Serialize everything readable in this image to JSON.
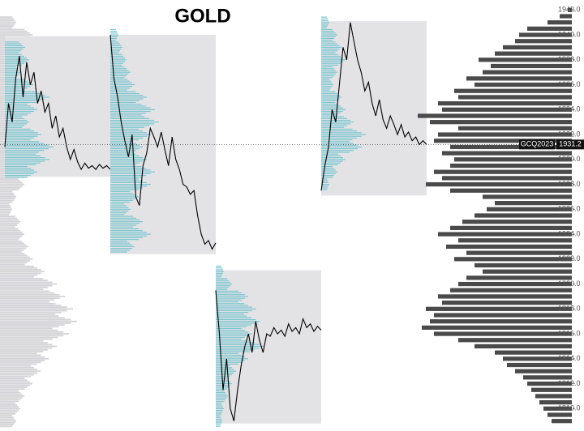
{
  "chart_data": {
    "type": "volume-profile",
    "title": "GOLD",
    "symbol": "GCQ2023",
    "last_price": 1931.2,
    "ylim": [
      1908.2,
      1942.8
    ],
    "yticks": [
      {
        "value": 1942,
        "label": "1942.0"
      },
      {
        "value": 1940,
        "label": "1940.0"
      },
      {
        "value": 1938,
        "label": "1938.0"
      },
      {
        "value": 1936,
        "label": "1936.0"
      },
      {
        "value": 1934,
        "label": "1934.0"
      },
      {
        "value": 1932,
        "label": "1932.0"
      },
      {
        "value": 1930,
        "label": "1930.0"
      },
      {
        "value": 1928,
        "label": "1928.0"
      },
      {
        "value": 1926,
        "label": "1926.0"
      },
      {
        "value": 1924,
        "label": "1924.0"
      },
      {
        "value": 1922,
        "label": "1922.0"
      },
      {
        "value": 1920,
        "label": "1920.0"
      },
      {
        "value": 1918,
        "label": "1918.0"
      },
      {
        "value": 1916,
        "label": "1916.0"
      },
      {
        "value": 1914,
        "label": "1914.0"
      },
      {
        "value": 1912,
        "label": "1912.0"
      },
      {
        "value": 1910,
        "label": "1910.0"
      }
    ],
    "box_color": "#e3e3e6",
    "line_color": "#000000",
    "session_profile_color": "#7cc6cf",
    "prior_profile_color": "#d4d4d8",
    "composite_color": "#4a4a4a",
    "prior_profile": {
      "levels": [
        1941,
        1940,
        1939,
        1938,
        1937,
        1936,
        1935,
        1934,
        1933,
        1932,
        1931,
        1930,
        1929,
        1928,
        1927,
        1926,
        1925,
        1924,
        1923,
        1922,
        1921,
        1920,
        1919,
        1918,
        1917,
        1916,
        1915,
        1914,
        1913,
        1912,
        1911,
        1910,
        1909
      ],
      "volumes": [
        20,
        40,
        55,
        60,
        70,
        80,
        95,
        110,
        120,
        100,
        90,
        60,
        40,
        30,
        20,
        15,
        25,
        30,
        35,
        40,
        55,
        70,
        80,
        90,
        95,
        85,
        70,
        60,
        50,
        40,
        30,
        25,
        20
      ]
    },
    "sessions": [
      {
        "high": 1939.9,
        "low": 1928.6,
        "prices": [
          1931.0,
          1934.5,
          1933.0,
          1936.5,
          1938.3,
          1935.0,
          1937.8,
          1936.0,
          1937.0,
          1934.5,
          1935.5,
          1933.8,
          1934.5,
          1932.5,
          1933.5,
          1931.8,
          1932.5,
          1931.0,
          1930.0,
          1930.8,
          1929.8,
          1929.2,
          1929.7,
          1929.3,
          1929.5,
          1929.2,
          1929.6,
          1929.3,
          1929.5,
          1929.2
        ],
        "profile": {
          "levels": [
            1939,
            1938,
            1937,
            1936,
            1935,
            1934,
            1933,
            1932,
            1931,
            1930,
            1929
          ],
          "volumes": [
            25,
            30,
            20,
            35,
            55,
            40,
            30,
            45,
            60,
            55,
            40
          ]
        }
      },
      {
        "high": 1940.0,
        "low": 1922.4,
        "prices": [
          1940.0,
          1936.5,
          1935.0,
          1933.0,
          1931.5,
          1930.2,
          1932.0,
          1927.0,
          1926.3,
          1929.5,
          1930.5,
          1932.5,
          1931.8,
          1931.0,
          1932.2,
          1930.8,
          1929.5,
          1931.8,
          1930.0,
          1929.2,
          1928.0,
          1927.8,
          1927.2,
          1927.5,
          1925.5,
          1924.0,
          1923.2,
          1923.5,
          1922.8,
          1923.3
        ],
        "profile": {
          "levels": [
            1940,
            1939,
            1938,
            1937,
            1936,
            1935,
            1934,
            1933,
            1932,
            1931,
            1930,
            1929,
            1928,
            1927,
            1926,
            1925,
            1924,
            1923
          ],
          "volumes": [
            10,
            15,
            20,
            25,
            30,
            45,
            55,
            60,
            50,
            40,
            45,
            55,
            50,
            35,
            25,
            40,
            50,
            30
          ]
        }
      },
      {
        "high": 1921.1,
        "low": 1908.8,
        "prices": [
          1919.5,
          1916.0,
          1911.5,
          1914.0,
          1910.0,
          1909.0,
          1911.5,
          1913.5,
          1915.0,
          1916.0,
          1914.5,
          1917.0,
          1915.5,
          1914.5,
          1916.0,
          1915.8,
          1916.5,
          1916.0,
          1916.3,
          1915.8,
          1916.8,
          1916.2,
          1916.5,
          1916.0,
          1917.2,
          1916.5,
          1916.8,
          1916.2,
          1916.6,
          1916.3
        ],
        "profile": {
          "levels": [
            1921,
            1920,
            1919,
            1918,
            1917,
            1916,
            1915,
            1914,
            1913,
            1912,
            1911,
            1910,
            1909
          ],
          "volumes": [
            10,
            20,
            40,
            50,
            55,
            45,
            60,
            40,
            25,
            20,
            15,
            10,
            8
          ]
        }
      },
      {
        "high": 1941.1,
        "low": 1927.1,
        "prices": [
          1927.5,
          1929.5,
          1931.0,
          1934.0,
          1933.0,
          1936.0,
          1939.0,
          1938.0,
          1941.0,
          1939.5,
          1938.0,
          1937.0,
          1935.5,
          1936.2,
          1934.5,
          1933.5,
          1934.8,
          1933.2,
          1932.5,
          1933.5,
          1932.8,
          1932.0,
          1932.8,
          1931.8,
          1932.2,
          1931.5,
          1931.8,
          1931.2,
          1931.5,
          1931.2
        ],
        "profile": {
          "levels": [
            1941,
            1940,
            1939,
            1938,
            1937,
            1936,
            1935,
            1934,
            1933,
            1932,
            1931,
            1930,
            1929,
            1928
          ],
          "volumes": [
            10,
            20,
            25,
            30,
            20,
            15,
            25,
            30,
            40,
            55,
            50,
            30,
            20,
            10
          ]
        }
      }
    ],
    "composite_profile": {
      "levels": [
        1942.0,
        1941.5,
        1941.0,
        1940.5,
        1940.0,
        1939.5,
        1939.0,
        1938.5,
        1938.0,
        1937.5,
        1937.0,
        1936.5,
        1936.0,
        1935.5,
        1935.0,
        1934.5,
        1934.0,
        1933.5,
        1933.0,
        1932.5,
        1932.0,
        1931.5,
        1931.0,
        1930.5,
        1930.0,
        1929.5,
        1929.0,
        1928.5,
        1928.0,
        1927.5,
        1927.0,
        1926.5,
        1926.0,
        1925.5,
        1925.0,
        1924.5,
        1924.0,
        1923.5,
        1923.0,
        1922.5,
        1922.0,
        1921.5,
        1921.0,
        1920.5,
        1920.0,
        1919.5,
        1919.0,
        1918.5,
        1918.0,
        1917.5,
        1917.0,
        1916.5,
        1916.0,
        1915.5,
        1915.0,
        1914.5,
        1914.0,
        1913.5,
        1913.0,
        1912.5,
        1912.0,
        1911.5,
        1911.0,
        1910.5,
        1910.0,
        1909.5,
        1909.0
      ],
      "volumes": [
        5,
        15,
        30,
        55,
        65,
        70,
        85,
        95,
        115,
        100,
        110,
        130,
        120,
        145,
        140,
        165,
        160,
        190,
        175,
        140,
        165,
        170,
        150,
        160,
        145,
        150,
        170,
        160,
        180,
        150,
        110,
        95,
        105,
        120,
        135,
        150,
        165,
        140,
        155,
        130,
        145,
        120,
        110,
        130,
        140,
        150,
        165,
        160,
        180,
        170,
        175,
        185,
        170,
        140,
        120,
        95,
        85,
        80,
        70,
        60,
        55,
        50,
        45,
        40,
        35,
        30,
        25
      ]
    }
  }
}
